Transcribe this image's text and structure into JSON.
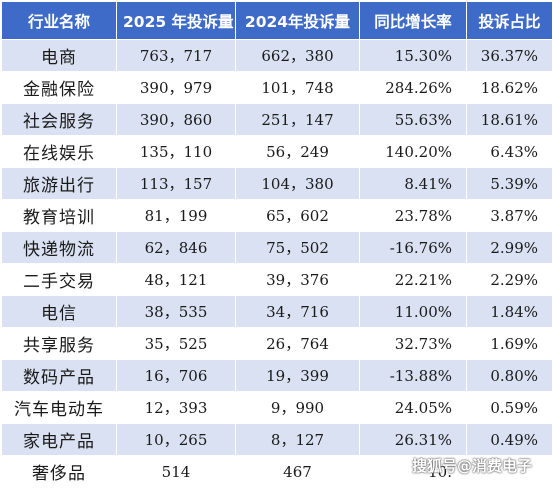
{
  "table": {
    "headers": [
      "行业名称",
      "2025 年投诉量",
      "2024年投诉量",
      "同比增长率",
      "投诉占比"
    ],
    "rows": [
      [
        "电商",
        "763，717",
        "662，380",
        "15.30%",
        "36.37%"
      ],
      [
        "金融保险",
        "390，979",
        "101，748",
        "284.26%",
        "18.62%"
      ],
      [
        "社会服务",
        "390，860",
        "251，147",
        "55.63%",
        "18.61%"
      ],
      [
        "在线娱乐",
        "135，110",
        "56，249",
        "140.20%",
        "6.43%"
      ],
      [
        "旅游出行",
        "113，157",
        "104，380",
        "8.41%",
        "5.39%"
      ],
      [
        "教育培训",
        "81，199",
        "65，602",
        "23.78%",
        "3.87%"
      ],
      [
        "快递物流",
        "62，846",
        "75，502",
        "-16.76%",
        "2.99%"
      ],
      [
        "二手交易",
        "48，121",
        "39，376",
        "22.21%",
        "2.29%"
      ],
      [
        "电信",
        "38，535",
        "34，716",
        "11.00%",
        "1.84%"
      ],
      [
        "共享服务",
        "35，525",
        "26，764",
        "32.73%",
        "1.69%"
      ],
      [
        "数码产品",
        "16，706",
        "19，399",
        "-13.88%",
        "0.80%"
      ],
      [
        "汽车电动车",
        "12，393",
        "9，990",
        "24.05%",
        "0.59%"
      ],
      [
        "家电产品",
        "10，265",
        "8，127",
        "26.31%",
        "0.49%"
      ],
      [
        "奢侈品",
        "514",
        "467",
        "10.",
        ""
      ]
    ]
  },
  "watermark": "搜狐号@消费电子",
  "colors": {
    "header_bg": "#3d6bc7",
    "stripe_bg": "#d9e1f2",
    "row_bg": "#ffffff"
  }
}
